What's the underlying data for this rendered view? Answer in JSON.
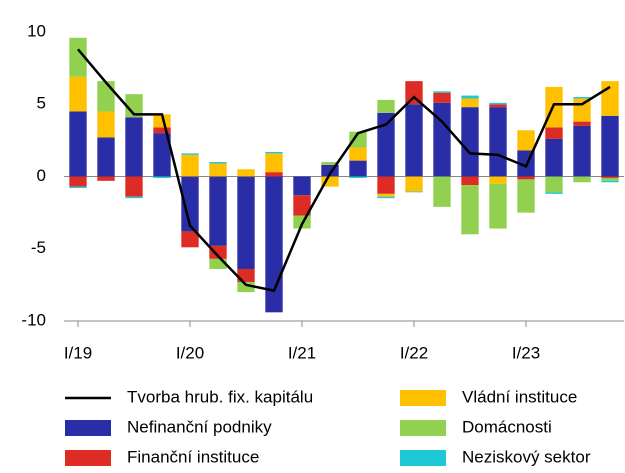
{
  "chart_data": {
    "type": "bar",
    "categories": [
      "I/19",
      null,
      null,
      null,
      "I/20",
      null,
      null,
      null,
      "I/21",
      null,
      null,
      null,
      "I/22",
      null,
      null,
      null,
      "I/23",
      null,
      null,
      null
    ],
    "series": [
      {
        "name": "Tvorba hrub. fix. kapitálu",
        "type": "line",
        "color": "#000000",
        "values": [
          8.8,
          6.5,
          4.3,
          4.3,
          -3.4,
          -5.5,
          -7.5,
          -7.9,
          -3.3,
          0.2,
          3.0,
          3.6,
          5.5,
          3.8,
          1.6,
          1.5,
          0.7,
          5.0,
          5.0,
          6.2
        ]
      },
      {
        "name": "Nefinanční podniky",
        "color": "#2a2ea6",
        "values": [
          4.5,
          2.7,
          4.1,
          3.0,
          -3.8,
          -4.8,
          -6.4,
          -9.4,
          -1.3,
          0.8,
          1.1,
          4.4,
          5.0,
          5.1,
          4.8,
          4.8,
          1.8,
          2.6,
          3.5,
          4.2
        ]
      },
      {
        "name": "Finanční instituce",
        "color": "#dd2c24",
        "values": [
          -0.7,
          -0.3,
          -1.4,
          0.4,
          -1.1,
          -0.9,
          -0.9,
          0.3,
          -1.4,
          0,
          0,
          -1.2,
          1.6,
          0.7,
          -0.6,
          0.2,
          -0.2,
          0.8,
          0.3,
          -0.1
        ]
      },
      {
        "name": "Vládní instituce",
        "color": "#ffc000",
        "values": [
          2.4,
          1.8,
          0,
          0.9,
          1.5,
          0.9,
          0.5,
          1.3,
          0,
          -0.7,
          0.9,
          -0.2,
          -1.0,
          0,
          0.6,
          -0.5,
          1.4,
          2.8,
          1.6,
          2.4
        ]
      },
      {
        "name": "Domácnosti",
        "color": "#92d050",
        "values": [
          2.7,
          2.1,
          1.6,
          0,
          0,
          -0.7,
          -0.7,
          0,
          -0.9,
          0.2,
          1.1,
          0.9,
          -0.1,
          -2.1,
          -3.4,
          -3.1,
          -2.3,
          -1.1,
          -0.4,
          -0.2
        ]
      },
      {
        "name": "Neziskový sektor",
        "color": "#1fc8d6",
        "values": [
          -0.1,
          0,
          -0.1,
          -0.1,
          0.1,
          0.1,
          0,
          0.1,
          0,
          0,
          -0.1,
          -0.1,
          0,
          0.1,
          0.2,
          0.1,
          0,
          -0.1,
          0.1,
          -0.1
        ]
      }
    ],
    "ylim": [
      -10,
      10
    ],
    "yticks": [
      -10,
      -5,
      0,
      5,
      10
    ],
    "grid": false
  }
}
